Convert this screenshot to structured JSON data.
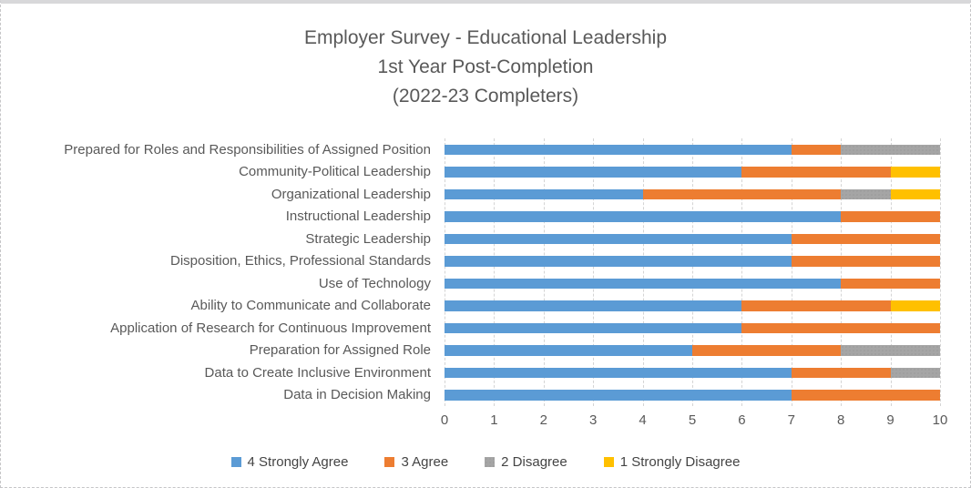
{
  "title": {
    "line1": "Employer Survey - Educational Leadership",
    "line2": "1st Year Post-Completion",
    "line3": "(2022-23 Completers)"
  },
  "chart_data": {
    "type": "bar",
    "orientation": "horizontal",
    "stacked": true,
    "title": "Employer Survey - Educational Leadership 1st Year Post-Completion (2022-23 Completers)",
    "categories": [
      "Prepared for Roles and Responsibilities of Assigned Position",
      "Community-Political Leadership",
      "Organizational Leadership",
      "Instructional Leadership",
      "Strategic Leadership",
      "Disposition, Ethics, Professional Standards",
      "Use of Technology",
      "Ability to Communicate and Collaborate",
      "Application of Research for Continuous Improvement",
      "Preparation for Assigned Role",
      "Data to Create Inclusive Environment",
      "Data in Decision Making"
    ],
    "series": [
      {
        "name": "4 Strongly Agree",
        "color": "#5B9BD5",
        "pattern": "solid",
        "values": [
          7,
          6,
          4,
          8,
          7,
          7,
          8,
          6,
          6,
          5,
          7,
          7
        ]
      },
      {
        "name": "3 Agree",
        "color": "#ED7D31",
        "pattern": "solid",
        "values": [
          1,
          3,
          4,
          2,
          3,
          3,
          2,
          3,
          4,
          3,
          2,
          3
        ]
      },
      {
        "name": "2 Disagree",
        "color": "#A5A5A5",
        "pattern": "stipple",
        "values": [
          2,
          0,
          1,
          0,
          0,
          0,
          0,
          0,
          0,
          2,
          1,
          0
        ]
      },
      {
        "name": "1 Strongly Disagree",
        "color": "#FFC000",
        "pattern": "solid",
        "values": [
          0,
          1,
          1,
          0,
          0,
          0,
          0,
          1,
          0,
          0,
          0,
          0
        ]
      }
    ],
    "xlim": [
      0,
      10
    ],
    "x_ticks": [
      0,
      1,
      2,
      3,
      4,
      5,
      6,
      7,
      8,
      9,
      10
    ],
    "grid": "vertical-dashed",
    "legend_position": "bottom",
    "bar_total_per_row": 10
  }
}
